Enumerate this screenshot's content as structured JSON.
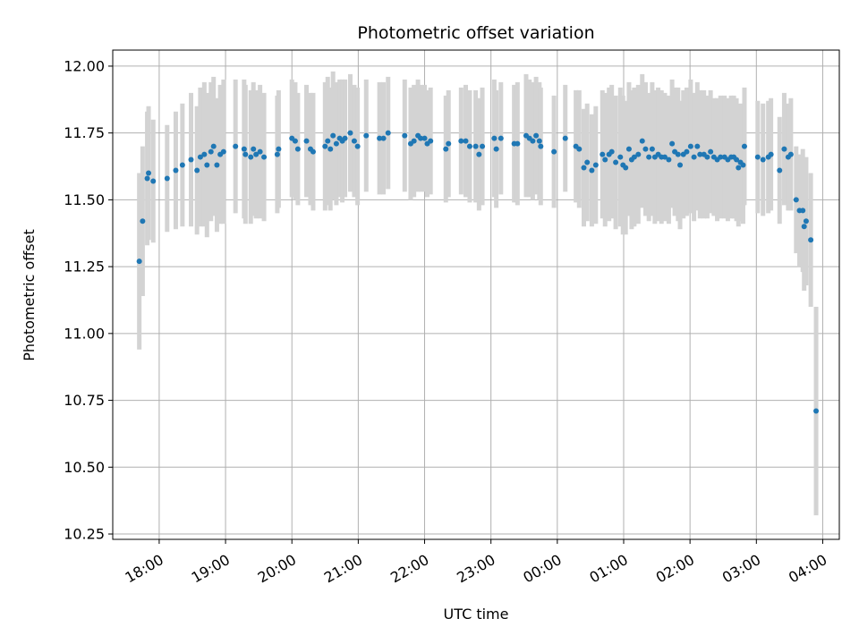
{
  "chart_data": {
    "type": "scatter",
    "title": "Photometric offset variation",
    "xlabel": "UTC time",
    "ylabel": "Photometric offset",
    "grid": true,
    "x_tick_labels": [
      "18:00",
      "19:00",
      "20:00",
      "21:00",
      "22:00",
      "23:00",
      "00:00",
      "01:00",
      "02:00",
      "03:00",
      "04:00"
    ],
    "y_tick_labels": [
      "10.25",
      "10.50",
      "10.75",
      "11.00",
      "11.25",
      "11.50",
      "11.75",
      "12.00"
    ],
    "x_range_hours": [
      17.3,
      28.25
    ],
    "ylim": [
      10.23,
      12.06
    ],
    "colors": {
      "points": "#1f77b4",
      "errorbars": "#d3d3d3",
      "grid": "#b0b0b0"
    },
    "series": [
      {
        "points": [
          [
            17.7,
            11.27,
            0.33
          ],
          [
            17.75,
            11.42,
            0.28
          ],
          [
            17.82,
            11.58,
            0.25
          ],
          [
            17.84,
            11.6,
            0.25
          ],
          [
            17.91,
            11.57,
            0.23
          ],
          [
            18.12,
            11.58,
            0.2
          ],
          [
            18.25,
            11.61,
            0.22
          ],
          [
            18.35,
            11.63,
            0.23
          ],
          [
            18.48,
            11.65,
            0.25
          ],
          [
            18.57,
            11.61,
            0.24
          ],
          [
            18.62,
            11.66,
            0.26
          ],
          [
            18.68,
            11.67,
            0.27
          ],
          [
            18.72,
            11.63,
            0.27
          ],
          [
            18.78,
            11.68,
            0.26
          ],
          [
            18.82,
            11.7,
            0.26
          ],
          [
            18.87,
            11.63,
            0.25
          ],
          [
            18.92,
            11.67,
            0.26
          ],
          [
            18.97,
            11.68,
            0.27
          ],
          [
            19.15,
            11.7,
            0.25
          ],
          [
            19.28,
            11.69,
            0.26
          ],
          [
            19.3,
            11.67,
            0.26
          ],
          [
            19.38,
            11.66,
            0.25
          ],
          [
            19.42,
            11.69,
            0.25
          ],
          [
            19.46,
            11.67,
            0.24
          ],
          [
            19.52,
            11.68,
            0.25
          ],
          [
            19.58,
            11.66,
            0.24
          ],
          [
            19.78,
            11.67,
            0.22
          ],
          [
            19.8,
            11.69,
            0.22
          ],
          [
            20.0,
            11.73,
            0.22
          ],
          [
            20.05,
            11.72,
            0.22
          ],
          [
            20.09,
            11.69,
            0.21
          ],
          [
            20.22,
            11.72,
            0.21
          ],
          [
            20.28,
            11.69,
            0.21
          ],
          [
            20.32,
            11.68,
            0.22
          ],
          [
            20.5,
            11.7,
            0.24
          ],
          [
            20.54,
            11.72,
            0.24
          ],
          [
            20.58,
            11.69,
            0.23
          ],
          [
            20.62,
            11.74,
            0.24
          ],
          [
            20.67,
            11.71,
            0.23
          ],
          [
            20.72,
            11.73,
            0.22
          ],
          [
            20.76,
            11.72,
            0.23
          ],
          [
            20.8,
            11.73,
            0.22
          ],
          [
            20.88,
            11.75,
            0.22
          ],
          [
            20.94,
            11.72,
            0.21
          ],
          [
            20.99,
            11.7,
            0.22
          ],
          [
            21.12,
            11.74,
            0.21
          ],
          [
            21.32,
            11.73,
            0.21
          ],
          [
            21.38,
            11.73,
            0.21
          ],
          [
            21.45,
            11.75,
            0.21
          ],
          [
            21.7,
            11.74,
            0.21
          ],
          [
            21.79,
            11.71,
            0.21
          ],
          [
            21.84,
            11.72,
            0.21
          ],
          [
            21.9,
            11.74,
            0.21
          ],
          [
            21.94,
            11.73,
            0.2
          ],
          [
            22.0,
            11.73,
            0.2
          ],
          [
            22.04,
            11.71,
            0.2
          ],
          [
            22.09,
            11.72,
            0.2
          ],
          [
            22.32,
            11.69,
            0.2
          ],
          [
            22.36,
            11.71,
            0.2
          ],
          [
            22.55,
            11.72,
            0.2
          ],
          [
            22.62,
            11.72,
            0.21
          ],
          [
            22.68,
            11.7,
            0.21
          ],
          [
            22.77,
            11.7,
            0.21
          ],
          [
            22.82,
            11.67,
            0.21
          ],
          [
            22.87,
            11.7,
            0.22
          ],
          [
            23.05,
            11.73,
            0.22
          ],
          [
            23.08,
            11.69,
            0.22
          ],
          [
            23.15,
            11.73,
            0.21
          ],
          [
            23.35,
            11.71,
            0.22
          ],
          [
            23.4,
            11.71,
            0.23
          ],
          [
            23.53,
            11.74,
            0.23
          ],
          [
            23.58,
            11.73,
            0.22
          ],
          [
            23.63,
            11.72,
            0.22
          ],
          [
            23.68,
            11.74,
            0.22
          ],
          [
            23.73,
            11.72,
            0.22
          ],
          [
            23.75,
            11.7,
            0.22
          ],
          [
            23.95,
            11.68,
            0.21
          ],
          [
            24.12,
            11.73,
            0.2
          ],
          [
            24.28,
            11.7,
            0.21
          ],
          [
            24.33,
            11.69,
            0.22
          ],
          [
            24.4,
            11.62,
            0.22
          ],
          [
            24.45,
            11.64,
            0.22
          ],
          [
            24.52,
            11.61,
            0.21
          ],
          [
            24.58,
            11.63,
            0.22
          ],
          [
            24.68,
            11.67,
            0.24
          ],
          [
            24.72,
            11.65,
            0.25
          ],
          [
            24.78,
            11.67,
            0.25
          ],
          [
            24.82,
            11.68,
            0.25
          ],
          [
            24.88,
            11.64,
            0.25
          ],
          [
            24.95,
            11.66,
            0.26
          ],
          [
            24.99,
            11.63,
            0.26
          ],
          [
            25.03,
            11.62,
            0.25
          ],
          [
            25.08,
            11.69,
            0.25
          ],
          [
            25.12,
            11.65,
            0.26
          ],
          [
            25.16,
            11.66,
            0.26
          ],
          [
            25.22,
            11.67,
            0.26
          ],
          [
            25.28,
            11.72,
            0.25
          ],
          [
            25.33,
            11.69,
            0.25
          ],
          [
            25.38,
            11.66,
            0.24
          ],
          [
            25.43,
            11.69,
            0.25
          ],
          [
            25.47,
            11.66,
            0.25
          ],
          [
            25.52,
            11.67,
            0.25
          ],
          [
            25.57,
            11.66,
            0.25
          ],
          [
            25.62,
            11.66,
            0.24
          ],
          [
            25.68,
            11.65,
            0.24
          ],
          [
            25.73,
            11.71,
            0.24
          ],
          [
            25.77,
            11.68,
            0.24
          ],
          [
            25.82,
            11.67,
            0.25
          ],
          [
            25.85,
            11.63,
            0.24
          ],
          [
            25.9,
            11.67,
            0.24
          ],
          [
            25.95,
            11.68,
            0.24
          ],
          [
            26.01,
            11.7,
            0.25
          ],
          [
            26.06,
            11.66,
            0.24
          ],
          [
            26.11,
            11.7,
            0.24
          ],
          [
            26.15,
            11.67,
            0.24
          ],
          [
            26.21,
            11.67,
            0.24
          ],
          [
            26.26,
            11.66,
            0.23
          ],
          [
            26.31,
            11.68,
            0.23
          ],
          [
            26.36,
            11.66,
            0.22
          ],
          [
            26.41,
            11.65,
            0.23
          ],
          [
            26.46,
            11.66,
            0.23
          ],
          [
            26.52,
            11.66,
            0.23
          ],
          [
            26.57,
            11.65,
            0.23
          ],
          [
            26.62,
            11.66,
            0.23
          ],
          [
            26.66,
            11.66,
            0.23
          ],
          [
            26.7,
            11.65,
            0.23
          ],
          [
            26.73,
            11.62,
            0.22
          ],
          [
            26.76,
            11.64,
            0.22
          ],
          [
            26.8,
            11.63,
            0.22
          ],
          [
            26.82,
            11.7,
            0.22
          ],
          [
            27.02,
            11.66,
            0.21
          ],
          [
            27.1,
            11.65,
            0.21
          ],
          [
            27.18,
            11.66,
            0.21
          ],
          [
            27.22,
            11.67,
            0.21
          ],
          [
            27.35,
            11.61,
            0.2
          ],
          [
            27.42,
            11.69,
            0.21
          ],
          [
            27.48,
            11.66,
            0.2
          ],
          [
            27.52,
            11.67,
            0.21
          ],
          [
            27.6,
            11.5,
            0.2
          ],
          [
            27.65,
            11.46,
            0.21
          ],
          [
            27.7,
            11.46,
            0.23
          ],
          [
            27.72,
            11.4,
            0.24
          ],
          [
            27.75,
            11.42,
            0.24
          ],
          [
            27.82,
            11.35,
            0.25
          ],
          [
            27.9,
            10.71,
            0.39
          ]
        ]
      }
    ]
  }
}
